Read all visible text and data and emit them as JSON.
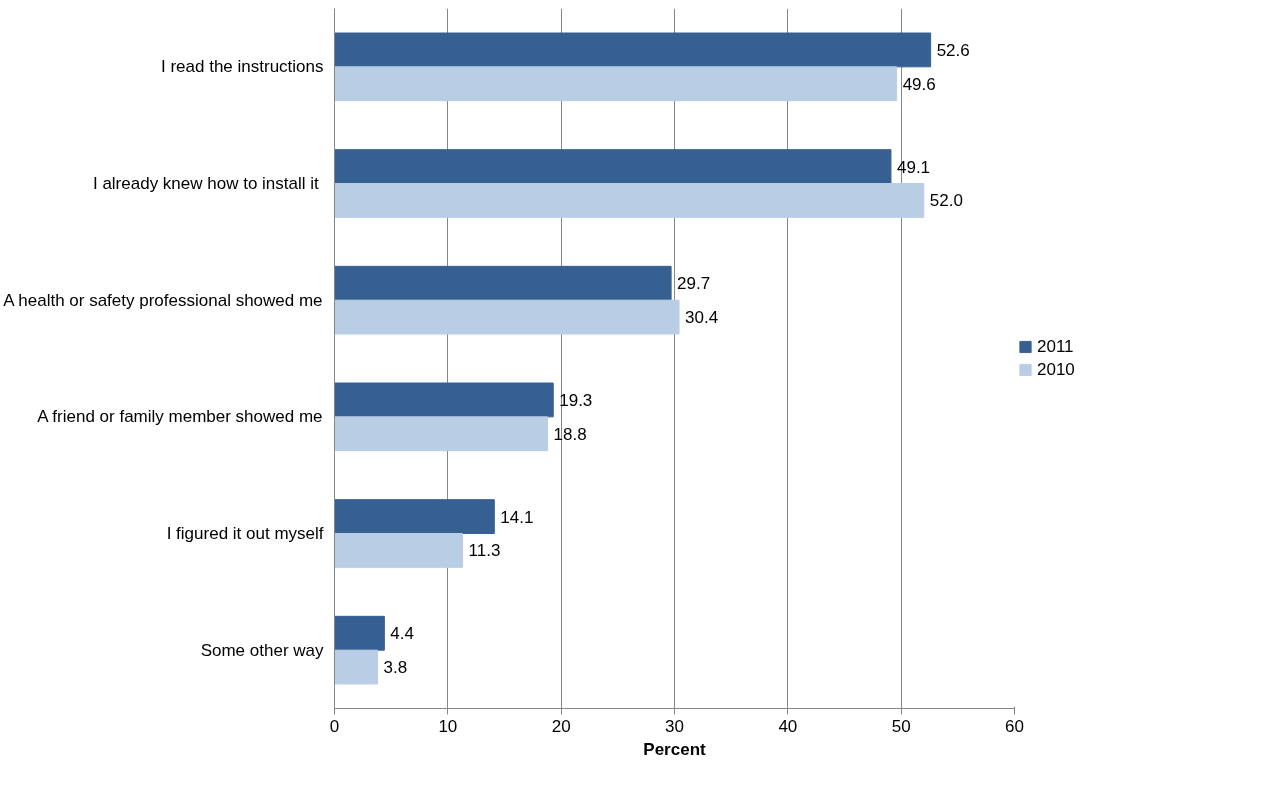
{
  "chart_data": {
    "type": "bar",
    "orientation": "horizontal",
    "xlabel": "Percent",
    "categories": [
      "I read the instructions",
      "I already knew how to install it ",
      "A health or safety professional showed me",
      "A friend or family member showed me",
      "I figured it out myself",
      "Some other way"
    ],
    "series": [
      {
        "name": "2011",
        "color": "#376092",
        "values": [
          52.6,
          49.1,
          29.7,
          19.3,
          14.1,
          4.4
        ],
        "value_labels": [
          "52.6",
          "49.1",
          "29.7",
          "19.3",
          "14.1",
          "4.4"
        ]
      },
      {
        "name": "2010",
        "color": "#b9cde5",
        "values": [
          49.6,
          52.0,
          30.4,
          18.8,
          11.3,
          3.8
        ],
        "value_labels": [
          "49.6",
          "52.0",
          "30.4",
          "18.8",
          "11.3",
          "3.8"
        ]
      }
    ],
    "xlim": [
      0,
      60
    ],
    "xticks": [
      0,
      10,
      20,
      30,
      40,
      50,
      60
    ],
    "grid": "x",
    "legend": "right"
  }
}
